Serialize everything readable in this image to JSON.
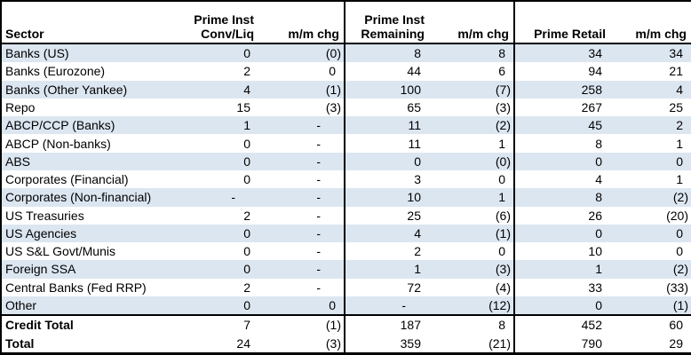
{
  "chart_data": {
    "type": "table",
    "title": "",
    "layout": {
      "banded_rows": true,
      "column_groups": [
        "Sector",
        "Prime Inst Conv/Liq",
        "Prime Inst Remaining",
        "Prime Retail"
      ],
      "negative_format": "parentheses"
    },
    "colors": {
      "row_band": "#dce6f1",
      "border": "#000000",
      "text": "#000000",
      "background": "#ffffff"
    },
    "header": {
      "sector": "Sector",
      "group1_line1": "Prime Inst",
      "group1_line2": "Conv/Liq",
      "mm_chg": "m/m chg",
      "group2_line1": "Prime Inst",
      "group2_line2": "Remaining",
      "group3": "Prime Retail"
    },
    "columns": [
      "Sector",
      "Prime Inst Conv/Liq",
      "m/m chg",
      "Prime Inst Remaining",
      "m/m chg",
      "Prime Retail",
      "m/m chg"
    ],
    "rows": [
      {
        "label": "Banks (US)",
        "values": [
          "0",
          "(0)",
          "8",
          "8",
          "34",
          "34"
        ]
      },
      {
        "label": "Banks (Eurozone)",
        "values": [
          "2",
          "0",
          "44",
          "6",
          "94",
          "21"
        ]
      },
      {
        "label": "Banks (Other Yankee)",
        "values": [
          "4",
          "(1)",
          "100",
          "(7)",
          "258",
          "4"
        ]
      },
      {
        "label": "Repo",
        "values": [
          "15",
          "(3)",
          "65",
          "(3)",
          "267",
          "25"
        ]
      },
      {
        "label": "ABCP/CCP (Banks)",
        "values": [
          "1",
          "-",
          "11",
          "(2)",
          "45",
          "2"
        ]
      },
      {
        "label": "ABCP (Non-banks)",
        "values": [
          "0",
          "-",
          "11",
          "1",
          "8",
          "1"
        ]
      },
      {
        "label": "ABS",
        "values": [
          "0",
          "-",
          "0",
          "(0)",
          "0",
          "0"
        ]
      },
      {
        "label": "Corporates (Financial)",
        "values": [
          "0",
          "-",
          "3",
          "0",
          "4",
          "1"
        ]
      },
      {
        "label": "Corporates (Non-financial)",
        "values": [
          "-",
          "-",
          "10",
          "1",
          "8",
          "(2)"
        ]
      },
      {
        "label": "US Treasuries",
        "values": [
          "2",
          "-",
          "25",
          "(6)",
          "26",
          "(20)"
        ]
      },
      {
        "label": "US Agencies",
        "values": [
          "0",
          "-",
          "4",
          "(1)",
          "0",
          "0"
        ]
      },
      {
        "label": "US S&L Govt/Munis",
        "values": [
          "0",
          "-",
          "2",
          "0",
          "10",
          "0"
        ]
      },
      {
        "label": "Foreign SSA",
        "values": [
          "0",
          "-",
          "1",
          "(3)",
          "1",
          "(2)"
        ]
      },
      {
        "label": "Central Banks (Fed RRP)",
        "values": [
          "2",
          "-",
          "72",
          "(4)",
          "33",
          "(33)"
        ]
      },
      {
        "label": "Other",
        "values": [
          "0",
          "0",
          "-",
          "(12)",
          "0",
          "(1)"
        ]
      }
    ],
    "totals": [
      {
        "label": "Credit Total",
        "values": [
          "7",
          "(1)",
          "187",
          "8",
          "452",
          "60"
        ]
      },
      {
        "label": "Total",
        "values": [
          "24",
          "(3)",
          "359",
          "(21)",
          "790",
          "29"
        ]
      }
    ]
  }
}
